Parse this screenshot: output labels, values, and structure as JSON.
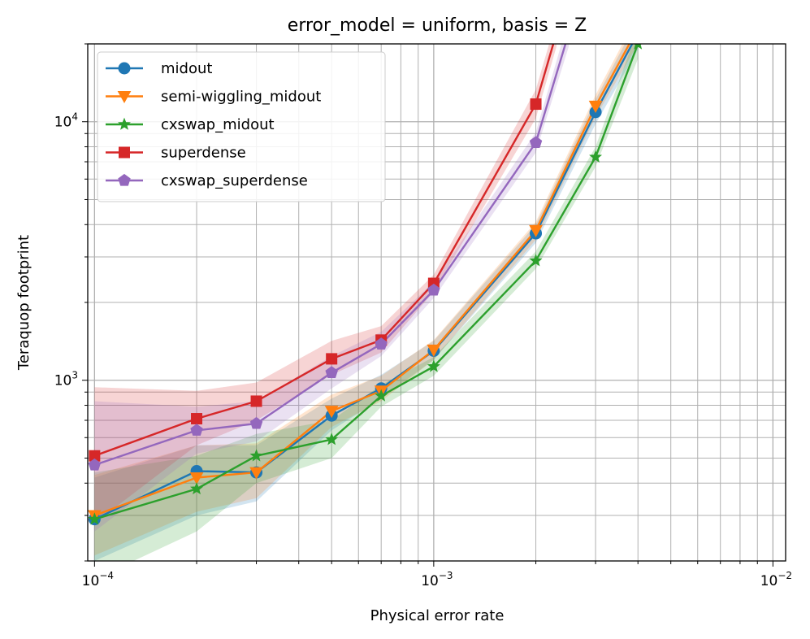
{
  "chart_data": {
    "type": "line",
    "title": "error_model = uniform, basis = Z",
    "xlabel": "Physical error rate",
    "ylabel": "Teraquop footprint",
    "xscale": "log",
    "yscale": "log",
    "xlim": [
      9.55e-05,
      0.0109
    ],
    "ylim": [
      200,
      20000
    ],
    "xticks": [
      {
        "value": 0.0001,
        "base": "10",
        "exp": "−4"
      },
      {
        "value": 0.001,
        "base": "10",
        "exp": "−3"
      },
      {
        "value": 0.01,
        "base": "10",
        "exp": "−2"
      }
    ],
    "yticks": [
      {
        "value": 1000,
        "base": "10",
        "exp": "3"
      },
      {
        "value": 10000,
        "base": "10",
        "exp": "4"
      }
    ],
    "grid": true,
    "grid_minor": true,
    "legend_position": "top-left",
    "series": [
      {
        "name": "midout",
        "color": "#1f77b4",
        "marker": "circle",
        "x": [
          0.0001,
          0.0002,
          0.0003,
          0.0005,
          0.0007,
          0.001,
          0.002,
          0.003,
          0.004
        ],
        "y": [
          290,
          445,
          440,
          730,
          930,
          1300,
          3700,
          10900,
          22000
        ],
        "lower": [
          200,
          300,
          340,
          640,
          850,
          1200,
          3400,
          9800,
          19000
        ],
        "upper": [
          420,
          560,
          560,
          850,
          1050,
          1420,
          4000,
          12200,
          25000
        ]
      },
      {
        "name": "semi-wiggling_midout",
        "color": "#ff7f0e",
        "marker": "triangle-down",
        "x": [
          0.0001,
          0.0002,
          0.0003,
          0.0005,
          0.0007,
          0.001,
          0.002,
          0.003,
          0.004
        ],
        "y": [
          300,
          420,
          440,
          760,
          910,
          1310,
          3800,
          11500,
          23000
        ],
        "lower": [
          210,
          310,
          350,
          660,
          830,
          1200,
          3500,
          10400,
          20000
        ],
        "upper": [
          430,
          560,
          570,
          880,
          1040,
          1430,
          4100,
          12700,
          26000
        ]
      },
      {
        "name": "cxswap_midout",
        "color": "#2ca02c",
        "marker": "star",
        "x": [
          0.0001,
          0.0002,
          0.0003,
          0.0005,
          0.0007,
          0.001,
          0.002,
          0.003,
          0.004
        ],
        "y": [
          290,
          380,
          510,
          590,
          870,
          1130,
          2900,
          7300,
          20000
        ],
        "lower": [
          170,
          260,
          400,
          500,
          790,
          1040,
          2700,
          6700,
          17500
        ],
        "upper": [
          440,
          510,
          620,
          700,
          960,
          1230,
          3150,
          8000,
          23000
        ]
      },
      {
        "name": "superdense",
        "color": "#d62728",
        "marker": "square",
        "x": [
          0.0001,
          0.0002,
          0.0003,
          0.0005,
          0.0007,
          0.001,
          0.002,
          0.0023
        ],
        "y": [
          510,
          710,
          830,
          1210,
          1430,
          2370,
          11700,
          22000
        ],
        "lower": [
          280,
          560,
          700,
          1050,
          1280,
          2200,
          10300,
          19500
        ],
        "upper": [
          940,
          910,
          980,
          1420,
          1620,
          2560,
          13300,
          25000
        ]
      },
      {
        "name": "cxswap_superdense",
        "color": "#9467bd",
        "marker": "pentagon",
        "x": [
          0.0001,
          0.0002,
          0.0003,
          0.0005,
          0.0007,
          0.001,
          0.002,
          0.0025
        ],
        "y": [
          470,
          640,
          680,
          1070,
          1380,
          2230,
          8300,
          22000
        ],
        "lower": [
          260,
          520,
          580,
          930,
          1240,
          2080,
          7600,
          19500
        ],
        "upper": [
          830,
          790,
          830,
          1240,
          1540,
          2400,
          9100,
          25000
        ]
      }
    ]
  }
}
